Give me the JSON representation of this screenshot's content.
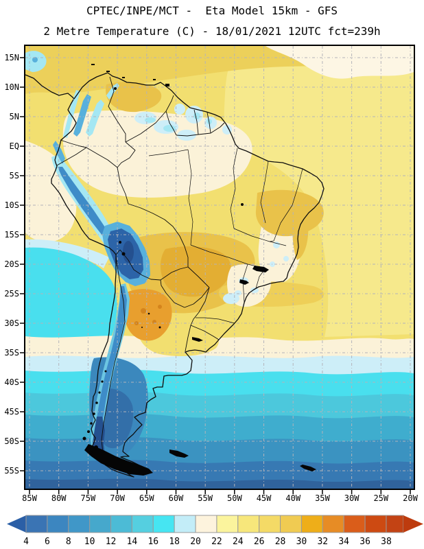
{
  "header": {
    "line1": "CPTEC/INPE/MCT -  Eta Model 15km - GFS",
    "line2": "2 Metre Temperature (C) - 18/01/2021 12UTC fct=239h"
  },
  "axes": {
    "lat_labels": [
      "15N",
      "10N",
      "5N",
      "EQ",
      "5S",
      "10S",
      "15S",
      "20S",
      "25S",
      "30S",
      "35S",
      "40S",
      "45S",
      "50S",
      "55S"
    ],
    "lon_labels": [
      "85W",
      "80W",
      "75W",
      "70W",
      "65W",
      "60W",
      "55W",
      "50W",
      "45W",
      "40W",
      "35W",
      "30W",
      "25W",
      "20W"
    ]
  },
  "colorbar": {
    "tick_labels": [
      "4",
      "6",
      "8",
      "10",
      "12",
      "14",
      "16",
      "18",
      "20",
      "22",
      "24",
      "26",
      "28",
      "30",
      "32",
      "34",
      "36",
      "38"
    ],
    "segment_colors": [
      "#3a74b4",
      "#3c86c0",
      "#4097c8",
      "#46a8cc",
      "#4cbbd6",
      "#55cfe0",
      "#46e5f2",
      "#c3edf8",
      "#fdf3dd",
      "#fbf49d",
      "#f7e77b",
      "#f4da66",
      "#f0cb52",
      "#eeae19",
      "#e78c25",
      "#da5d1a",
      "#cd4a12"
    ],
    "cap_color": "#c34314",
    "arrow_left_color": "#2b5fa6",
    "arrow_right_color": "#bd3b0e",
    "outline_color": "#999999"
  },
  "palette": {
    "band_yellow": "#f2df70",
    "band_pale_yellow": "#f6e98c",
    "band_caribbean": "#ecd05a",
    "band_gold": "#e9c24a",
    "amber_core": "#e3ae33",
    "band_gold_light": "#eecf58",
    "band_cream": "#fbf2d8",
    "cream_light": "#fdf6e4",
    "pale_cyan": "#cdeef8",
    "light_cyan": "#a4e7f3",
    "cyan_bright": "#49dfee",
    "teal_1": "#4cc8dc",
    "teal_2": "#3fadce",
    "blue_1": "#3b93c1",
    "blue_2": "#3779b3",
    "blue_3": "#30639c",
    "andes_fringe": "#6cc6e2",
    "andes_mid": "#58b0dc",
    "andes_deep": "#3e8cc8",
    "andes_core": "#2c64a8",
    "andes_dark": "#24508f",
    "patagonia_cold": "#3b88bd",
    "patagonia_core": "#336fa9",
    "orange_blob": "#e89f2e",
    "orange_dark": "#d4841c",
    "grid": "#b3b3ba",
    "line": "#0d0d0d",
    "ink": "#050505"
  }
}
